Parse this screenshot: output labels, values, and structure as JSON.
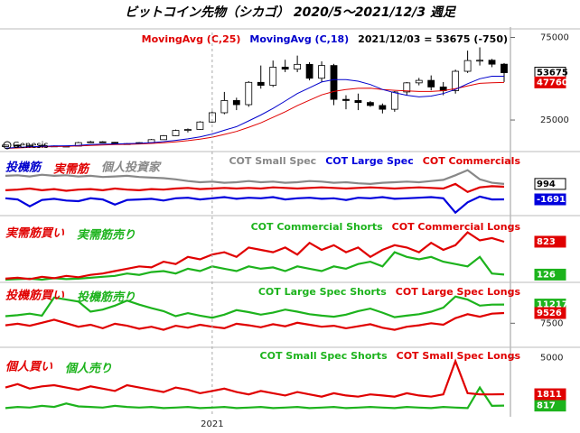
{
  "title": "ビットコイン先物（シカゴ） 2020/5～2021/12/3 週足",
  "chart_data": [
    {
      "type": "candlestick",
      "xlim": [
        0,
        41
      ],
      "ylim": [
        7000,
        78000
      ],
      "yticks": [
        25000,
        75000
      ],
      "open": [
        8900,
        9800,
        9200,
        9700,
        9300,
        9100,
        9200,
        11300,
        11800,
        11500,
        10400,
        10700,
        11300,
        13100,
        15500,
        18700,
        19300,
        23800,
        29400,
        36800,
        34300,
        47800,
        46000,
        57000,
        55800,
        58700,
        50300,
        58000,
        37500,
        36800,
        35600,
        33800,
        31500,
        42000,
        47500,
        49000,
        45000,
        42800,
        54500,
        61000,
        61200,
        58800
      ],
      "high": [
        10200,
        10000,
        10100,
        10000,
        9600,
        9500,
        11800,
        12400,
        12200,
        11700,
        11000,
        11600,
        13500,
        15900,
        19200,
        19900,
        24300,
        30200,
        42000,
        38500,
        48500,
        58000,
        61000,
        61500,
        64000,
        60000,
        60500,
        59000,
        40000,
        41000,
        36500,
        35000,
        42500,
        48000,
        50500,
        52000,
        48000,
        55500,
        67000,
        69000,
        62000,
        59500
      ],
      "low": [
        8700,
        8700,
        9000,
        9100,
        8900,
        8900,
        9100,
        11000,
        11100,
        10100,
        10300,
        10500,
        11200,
        13000,
        15300,
        17500,
        19000,
        23300,
        28500,
        31000,
        33000,
        44000,
        45000,
        54000,
        54000,
        49000,
        48000,
        34000,
        31500,
        31000,
        33000,
        29000,
        30000,
        40000,
        46000,
        43000,
        40000,
        41000,
        53500,
        58000,
        57000,
        48000
      ],
      "close": [
        9800,
        9200,
        9700,
        9300,
        9100,
        9200,
        11300,
        11800,
        11500,
        10400,
        10700,
        11300,
        13100,
        15500,
        18700,
        19300,
        23800,
        29400,
        36800,
        34300,
        47800,
        46000,
        57000,
        55800,
        58700,
        50300,
        58000,
        37500,
        36800,
        35600,
        33800,
        31500,
        42000,
        47500,
        49000,
        45000,
        42800,
        54500,
        61000,
        61200,
        58800,
        53675
      ],
      "end_label": true,
      "lines": [
        {
          "name": "MovingAvg (C,25)",
          "color": "#e00000",
          "end_label": true,
          "values": [
            7800,
            8100,
            8400,
            8700,
            8900,
            9100,
            9300,
            9600,
            9900,
            10100,
            10300,
            10500,
            10800,
            11200,
            11800,
            12500,
            13400,
            14600,
            16300,
            18100,
            20600,
            23300,
            26600,
            30000,
            33700,
            37000,
            40200,
            42300,
            43500,
            44200,
            44300,
            43500,
            43000,
            42600,
            42300,
            42300,
            42800,
            44000,
            45600,
            47200,
            47500,
            47760
          ]
        },
        {
          "name": "MovingAvg (C,18)",
          "color": "#0000cc",
          "values": [
            8000,
            8400,
            8800,
            9100,
            9300,
            9400,
            9700,
            10100,
            10400,
            10500,
            10700,
            10900,
            11300,
            11900,
            12700,
            13600,
            14800,
            16500,
            18800,
            21000,
            24500,
            28000,
            32000,
            36500,
            41000,
            44500,
            48000,
            49500,
            49500,
            48500,
            46500,
            43500,
            41500,
            40000,
            39000,
            39500,
            41000,
            43500,
            47000,
            50000,
            51500,
            51500
          ]
        }
      ],
      "info": "2021/12/03 = 53675 (-750)",
      "source": "Genesis"
    },
    {
      "type": "line",
      "xlim": [
        0,
        41
      ],
      "ylim": [
        -4200,
        6000
      ],
      "annotations": [
        {
          "text": "投機筋",
          "color": "#0000cc"
        },
        {
          "text": "実需筋",
          "color": "#e00000"
        },
        {
          "text": "個人投資家",
          "color": "#888888"
        }
      ],
      "series": [
        {
          "name": "COT Small Spec",
          "color": "#888888",
          "end_label": true,
          "values": [
            2400,
            2500,
            2300,
            2600,
            2400,
            2500,
            2300,
            2400,
            2200,
            2300,
            2400,
            2200,
            2100,
            2000,
            1800,
            1500,
            1300,
            1400,
            1200,
            1300,
            1500,
            1300,
            1400,
            1200,
            1300,
            1500,
            1400,
            1200,
            1300,
            1100,
            1000,
            1200,
            1300,
            1400,
            1300,
            1500,
            1700,
            2500,
            3400,
            1800,
            1200,
            994
          ]
        },
        {
          "name": "COT Large Spec",
          "color": "#0000dd",
          "end_label": true,
          "values": [
            -1500,
            -1700,
            -2900,
            -1800,
            -1600,
            -1900,
            -2000,
            -1500,
            -1700,
            -2600,
            -1800,
            -1700,
            -1600,
            -1900,
            -1500,
            -1400,
            -1700,
            -1500,
            -1300,
            -1600,
            -1400,
            -1500,
            -1300,
            -1700,
            -1500,
            -1400,
            -1600,
            -1500,
            -1800,
            -1400,
            -1500,
            -1300,
            -1600,
            -1500,
            -1400,
            -1300,
            -1500,
            -4000,
            -2200,
            -1200,
            -1700,
            -1691
          ]
        },
        {
          "name": "COT Commercials",
          "color": "#e00000",
          "values": [
            -100,
            0,
            200,
            -100,
            100,
            -200,
            0,
            100,
            -100,
            200,
            0,
            -100,
            100,
            0,
            200,
            300,
            100,
            200,
            300,
            200,
            300,
            200,
            400,
            300,
            200,
            300,
            400,
            300,
            200,
            300,
            400,
            300,
            200,
            300,
            400,
            300,
            200,
            1000,
            -400,
            400,
            600,
            500
          ]
        }
      ]
    },
    {
      "type": "line",
      "xlim": [
        0,
        41
      ],
      "ylim": [
        0,
        1300
      ],
      "annotations": [
        {
          "text": "実需筋買い",
          "color": "#e00000"
        },
        {
          "text": "実需筋売り",
          "color": "#1db31d"
        }
      ],
      "series": [
        {
          "name": "COT Commercial Shorts",
          "color": "#1db31d",
          "end_label": true,
          "values": [
            20,
            30,
            40,
            20,
            50,
            30,
            40,
            60,
            80,
            100,
            150,
            120,
            180,
            200,
            150,
            250,
            200,
            300,
            250,
            200,
            300,
            250,
            280,
            200,
            300,
            250,
            200,
            300,
            250,
            350,
            400,
            300,
            600,
            500,
            450,
            500,
            400,
            350,
            300,
            500,
            150,
            126
          ]
        },
        {
          "name": "COT Commercial Longs",
          "color": "#e00000",
          "end_label": true,
          "values": [
            40,
            60,
            30,
            80,
            50,
            100,
            70,
            120,
            150,
            200,
            250,
            300,
            280,
            400,
            350,
            500,
            450,
            550,
            600,
            500,
            700,
            650,
            600,
            700,
            550,
            800,
            650,
            750,
            600,
            700,
            500,
            650,
            750,
            700,
            600,
            800,
            650,
            750,
            1020,
            850,
            900,
            823
          ]
        }
      ]
    },
    {
      "type": "line",
      "xlim": [
        0,
        41
      ],
      "ylim": [
        2900,
        14900
      ],
      "yticks": [
        7500
      ],
      "annotations": [
        {
          "text": "投機筋買い",
          "color": "#e00000"
        },
        {
          "text": "投機筋売り",
          "color": "#1db31d"
        }
      ],
      "series": [
        {
          "name": "COT Large Spec Shorts",
          "color": "#1db31d",
          "end_label": true,
          "values": [
            8900,
            9100,
            9400,
            9000,
            12600,
            12200,
            11800,
            9800,
            10200,
            11000,
            12000,
            11200,
            10500,
            9900,
            8900,
            9500,
            9000,
            8600,
            9200,
            10100,
            9700,
            9200,
            9600,
            10200,
            9800,
            9300,
            9000,
            8800,
            9200,
            9900,
            10400,
            9600,
            8700,
            9000,
            9300,
            9800,
            10600,
            12800,
            12200,
            11000,
            11200,
            11217
          ]
        },
        {
          "name": "COT Large Spec Longs",
          "color": "#e00000",
          "end_label": true,
          "values": [
            7100,
            7400,
            7000,
            7600,
            8200,
            7500,
            6800,
            7200,
            6500,
            7400,
            7000,
            6400,
            6800,
            6200,
            7000,
            6600,
            7200,
            6800,
            6500,
            7400,
            7100,
            6700,
            7300,
            6900,
            7600,
            7200,
            6800,
            7000,
            6500,
            6900,
            7300,
            6600,
            6200,
            6800,
            7100,
            7500,
            7200,
            8500,
            9300,
            8800,
            9400,
            9526
          ]
        }
      ]
    },
    {
      "type": "line",
      "xlim": [
        0,
        41
      ],
      "ylim": [
        0,
        5600
      ],
      "yticks": [
        5000
      ],
      "xticks": [
        {
          "value": 17,
          "label": "2021"
        }
      ],
      "annotations": [
        {
          "text": "個人買い",
          "color": "#e00000"
        },
        {
          "text": "個人売り",
          "color": "#1db31d"
        }
      ],
      "series": [
        {
          "name": "COT Small Spec Shorts",
          "color": "#1db31d",
          "end_label": true,
          "values": [
            600,
            700,
            650,
            800,
            700,
            1000,
            750,
            700,
            650,
            800,
            700,
            650,
            700,
            600,
            650,
            700,
            600,
            650,
            700,
            600,
            650,
            700,
            600,
            650,
            700,
            600,
            650,
            700,
            600,
            650,
            700,
            650,
            600,
            700,
            650,
            600,
            700,
            650,
            600,
            2400,
            800,
            817
          ]
        },
        {
          "name": "COT Small Spec Longs",
          "color": "#e00000",
          "end_label": true,
          "values": [
            2400,
            2700,
            2300,
            2500,
            2600,
            2400,
            2200,
            2500,
            2300,
            2100,
            2600,
            2400,
            2200,
            2000,
            2400,
            2200,
            1900,
            2100,
            2300,
            2000,
            1800,
            2100,
            1900,
            1700,
            2000,
            1800,
            1600,
            1900,
            1700,
            1600,
            1800,
            1700,
            1600,
            1900,
            1700,
            1600,
            1800,
            4700,
            1900,
            1800,
            1800,
            1811
          ]
        }
      ]
    }
  ]
}
